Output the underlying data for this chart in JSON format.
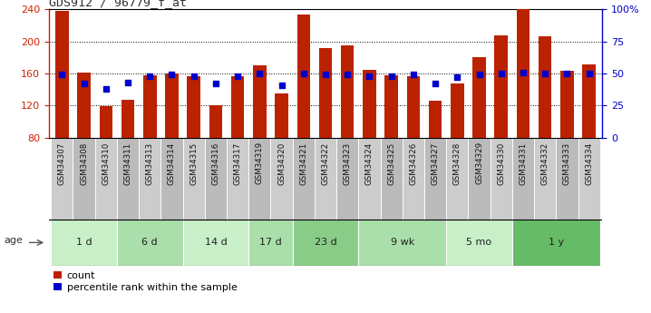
{
  "title": "GDS912 / 96779_f_at",
  "samples": [
    "GSM34307",
    "GSM34308",
    "GSM34310",
    "GSM34311",
    "GSM34313",
    "GSM34314",
    "GSM34315",
    "GSM34316",
    "GSM34317",
    "GSM34319",
    "GSM34320",
    "GSM34321",
    "GSM34322",
    "GSM34323",
    "GSM34324",
    "GSM34325",
    "GSM34326",
    "GSM34327",
    "GSM34328",
    "GSM34329",
    "GSM34330",
    "GSM34331",
    "GSM34332",
    "GSM34333",
    "GSM34334"
  ],
  "count_values": [
    238,
    161,
    119,
    127,
    158,
    160,
    157,
    121,
    157,
    170,
    135,
    234,
    192,
    195,
    165,
    158,
    157,
    126,
    148,
    181,
    208,
    241,
    206,
    163,
    171
  ],
  "percentile_values": [
    49,
    42,
    38,
    43,
    48,
    49,
    48,
    42,
    48,
    50,
    41,
    50,
    49,
    49,
    48,
    48,
    49,
    42,
    47,
    49,
    50,
    51,
    50,
    50,
    50
  ],
  "ylim_left": [
    80,
    240
  ],
  "ylim_right": [
    0,
    100
  ],
  "yticks_left": [
    80,
    120,
    160,
    200,
    240
  ],
  "yticks_right": [
    0,
    25,
    50,
    75,
    100
  ],
  "ytick_labels_right": [
    "0",
    "25",
    "50",
    "75",
    "100%"
  ],
  "groups": [
    {
      "label": "1 d",
      "indices": [
        0,
        1,
        2
      ]
    },
    {
      "label": "6 d",
      "indices": [
        3,
        4,
        5
      ]
    },
    {
      "label": "14 d",
      "indices": [
        6,
        7,
        8
      ]
    },
    {
      "label": "17 d",
      "indices": [
        9,
        10
      ]
    },
    {
      "label": "23 d",
      "indices": [
        11,
        12,
        13
      ]
    },
    {
      "label": "9 wk",
      "indices": [
        14,
        15,
        16,
        17
      ]
    },
    {
      "label": "5 mo",
      "indices": [
        18,
        19,
        20
      ]
    },
    {
      "label": "1 y",
      "indices": [
        21,
        22,
        23,
        24
      ]
    }
  ],
  "group_colors": [
    "#c8efc8",
    "#aadeaa",
    "#c8efc8",
    "#aadeaa",
    "#88cc88",
    "#aadeaa",
    "#c8efc8",
    "#66bb66"
  ],
  "bar_color": "#bb2200",
  "marker_color": "#0000cc",
  "bg_color": "#ffffff",
  "label_color_left": "#cc2200",
  "label_color_right": "#0000cc",
  "age_label": "age",
  "legend_count": "count",
  "legend_pct": "percentile rank within the sample",
  "gsm_row_colors": [
    "#cccccc",
    "#bbbbbb"
  ]
}
